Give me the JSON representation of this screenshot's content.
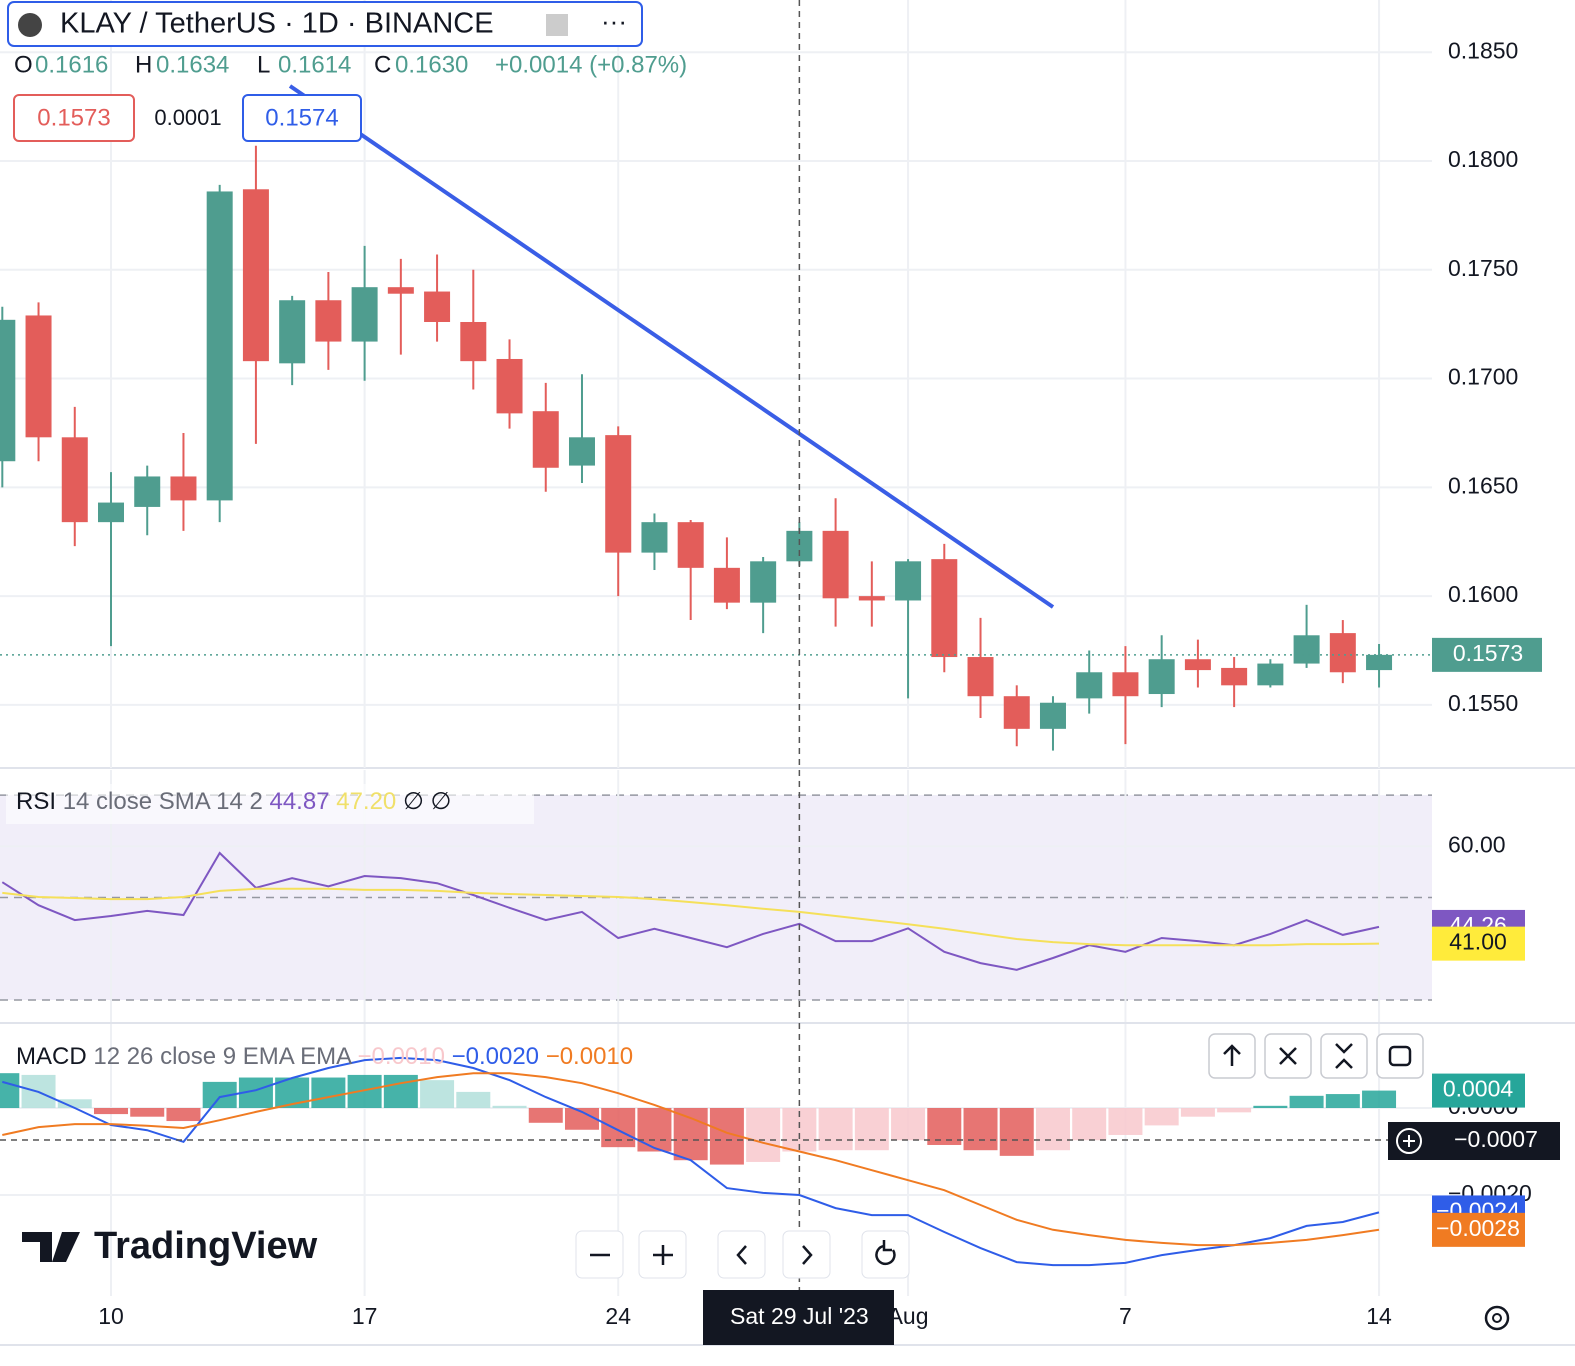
{
  "header": {
    "symbol": "KLAY / TetherUS · 1D · BINANCE",
    "ohlc": [
      {
        "key": "O",
        "value": "0.1616"
      },
      {
        "key": "H",
        "value": "0.1634"
      },
      {
        "key": "L",
        "value": "0.1614"
      },
      {
        "key": "C",
        "value": "0.1630"
      }
    ],
    "change": "+0.0014 (+0.87%)",
    "sell": 0.1573,
    "spread": 0.0001,
    "buy": 0.1574
  },
  "logo": "TradingView",
  "crosshair": {
    "date_label": "Sat 29 Jul '23",
    "value_label": "−0.0007"
  },
  "chart_data": [
    {
      "type": "candlestick",
      "categories": [
        null,
        null,
        null,
        "10",
        null,
        null,
        null,
        null,
        null,
        null,
        "17",
        null,
        null,
        null,
        null,
        null,
        null,
        "24",
        null,
        null,
        null,
        null,
        null,
        null,
        null,
        "Aug",
        null,
        null,
        null,
        null,
        null,
        "7",
        null,
        null,
        null,
        null,
        null,
        null,
        "14"
      ],
      "open": [
        0.1662,
        0.1729,
        0.1673,
        0.1634,
        0.1641,
        0.1655,
        0.1644,
        0.1787,
        0.1707,
        0.1736,
        0.1717,
        0.1742,
        0.174,
        0.1726,
        0.1709,
        0.1685,
        0.166,
        0.1674,
        0.162,
        0.1634,
        0.1613,
        0.1597,
        0.1616,
        0.163,
        0.16,
        0.1598,
        0.1617,
        0.1572,
        0.1554,
        0.1539,
        0.1553,
        0.1565,
        0.1555,
        0.1571,
        0.1567,
        0.1559,
        0.1569,
        0.1583,
        0.1566
      ],
      "high": [
        0.1733,
        0.1735,
        0.1687,
        0.1657,
        0.166,
        0.1675,
        0.1789,
        0.1807,
        0.1738,
        0.1749,
        0.1761,
        0.1755,
        0.1757,
        0.175,
        0.1718,
        0.1698,
        0.1702,
        0.1678,
        0.1638,
        0.1635,
        0.1627,
        0.1618,
        0.1634,
        0.1645,
        0.1616,
        0.1617,
        0.1624,
        0.159,
        0.1559,
        0.1554,
        0.1575,
        0.1577,
        0.1582,
        0.158,
        0.1572,
        0.1571,
        0.1596,
        0.1589,
        0.1578
      ],
      "low": [
        0.165,
        0.1662,
        0.1623,
        0.1577,
        0.1628,
        0.163,
        0.1634,
        0.167,
        0.1697,
        0.1704,
        0.1699,
        0.1711,
        0.1717,
        0.1695,
        0.1677,
        0.1648,
        0.1652,
        0.16,
        0.1612,
        0.1589,
        0.1594,
        0.1583,
        0.1614,
        0.1586,
        0.1586,
        0.1553,
        0.1565,
        0.1544,
        0.1531,
        0.1529,
        0.1546,
        0.1532,
        0.1549,
        0.1558,
        0.1549,
        0.1558,
        0.1567,
        0.156,
        0.1558
      ],
      "close": [
        0.1727,
        0.1673,
        0.1634,
        0.1643,
        0.1655,
        0.1644,
        0.1786,
        0.1708,
        0.1736,
        0.1717,
        0.1742,
        0.1739,
        0.1726,
        0.1708,
        0.1684,
        0.1659,
        0.1673,
        0.162,
        0.1634,
        0.1613,
        0.1597,
        0.1616,
        0.163,
        0.1599,
        0.1598,
        0.1616,
        0.1572,
        0.1554,
        0.1539,
        0.1551,
        0.1565,
        0.1554,
        0.1571,
        0.1566,
        0.1559,
        0.1569,
        0.1582,
        0.1565,
        0.1573
      ],
      "up_color": "#4f9d8f",
      "down_color": "#e35d5a",
      "ylim": [
        0.1521,
        0.1874
      ],
      "yticks": [
        {
          "value": 0.185,
          "label": "0.1850"
        },
        {
          "value": 0.18,
          "label": "0.1800"
        },
        {
          "value": 0.175,
          "label": "0.1750"
        },
        {
          "value": 0.17,
          "label": "0.1700"
        },
        {
          "value": 0.165,
          "label": "0.1650"
        },
        {
          "value": 0.16,
          "label": "0.1600"
        },
        {
          "value": 0.155,
          "label": "0.1550"
        }
      ],
      "last_price": 0.1573,
      "grid": true
    },
    {
      "type": "line",
      "title": "RSI",
      "params": "14 close SMA 14 2",
      "flags": "∅ ∅",
      "series": [
        {
          "name": "RSI",
          "color": "#7e57c2",
          "legend_value": "44.87",
          "last_label": "44.26",
          "values": [
            53.0,
            48.5,
            45.6,
            46.4,
            47.4,
            46.6,
            58.7,
            51.9,
            53.8,
            52.2,
            54.2,
            53.8,
            52.8,
            50.5,
            48.0,
            45.6,
            47.2,
            42.1,
            43.9,
            42.1,
            40.3,
            42.9,
            44.87,
            41.5,
            41.5,
            44.0,
            39.4,
            37.2,
            35.9,
            38.2,
            40.7,
            39.4,
            42.1,
            41.5,
            40.7,
            42.9,
            45.6,
            42.7,
            44.26
          ]
        },
        {
          "name": "SMA",
          "color": "#f5e05a",
          "legend_value": "47.20",
          "last_label": "41.00",
          "values": [
            50.9,
            50.1,
            49.9,
            49.7,
            49.7,
            50.1,
            51.3,
            51.7,
            51.7,
            51.7,
            51.5,
            51.5,
            51.3,
            50.9,
            50.7,
            50.5,
            50.3,
            50.1,
            49.7,
            49.1,
            48.5,
            47.8,
            47.2,
            46.4,
            45.6,
            44.8,
            43.9,
            42.9,
            41.9,
            41.3,
            40.9,
            40.7,
            40.7,
            40.7,
            40.7,
            40.7,
            40.9,
            40.9,
            41.0
          ]
        }
      ],
      "bands": [
        70,
        50,
        30
      ],
      "band_color": "#f1eef9",
      "ylim": [
        25.7,
        74.9
      ],
      "yticks": [
        {
          "value": 60,
          "label": "60.00"
        }
      ],
      "grid": true
    },
    {
      "type": "macd",
      "title": "MACD",
      "params": "12 26 close 9 EMA EMA",
      "histogram": {
        "name": "Histogram",
        "legend_value": "−0.0010",
        "last_label": "0.0004",
        "colors": [
          "#26a69a",
          "#b2dfdb",
          "#e35d5a",
          "#f8c8cc"
        ],
        "values": [
          0.0008,
          0.00076,
          0.0002,
          -0.00014,
          -0.0002,
          -0.0003,
          0.0006,
          0.0007,
          0.0007,
          0.0007,
          0.00076,
          0.00076,
          0.00064,
          0.00037,
          5e-05,
          -0.00034,
          -0.0005,
          -0.0009,
          -0.001,
          -0.0012,
          -0.0013,
          -0.00124,
          -0.001,
          -0.00097,
          -0.00097,
          -0.00074,
          -0.00085,
          -0.00097,
          -0.0011,
          -0.00097,
          -0.00074,
          -0.00062,
          -0.0004,
          -0.0002,
          -0.0001,
          5e-05,
          0.00028,
          0.00032,
          0.0004
        ]
      },
      "series": [
        {
          "name": "MACD",
          "color": "#2f5de8",
          "legend_value": "−0.0020",
          "last_label": "−0.0024",
          "values": [
            0.0006,
            0.00037,
            0,
            -0.00039,
            -0.00051,
            -0.00078,
            0.00025,
            0.00041,
            0.00069,
            0.00092,
            0.0011,
            0.00115,
            0.0011,
            0.00092,
            0.00064,
            0.00025,
            -9e-05,
            -0.00051,
            -0.00092,
            -0.0012,
            -0.00184,
            -0.00195,
            -0.002,
            -0.0023,
            -0.00246,
            -0.00246,
            -0.00285,
            -0.00322,
            -0.00354,
            -0.00361,
            -0.00361,
            -0.00356,
            -0.00338,
            -0.00326,
            -0.00315,
            -0.00299,
            -0.00271,
            -0.00262,
            -0.0024
          ]
        },
        {
          "name": "Signal",
          "color": "#f07b22",
          "legend_value": "−0.0010",
          "last_label": "−0.0028",
          "values": [
            -0.00062,
            -0.00044,
            -0.00037,
            -0.00037,
            -0.00041,
            -0.00046,
            -0.00028,
            -9e-05,
            9e-05,
            0.00025,
            0.00041,
            0.00057,
            0.00071,
            0.0008,
            0.0008,
            0.00071,
            0.00057,
            0.00034,
            7e-05,
            -0.00023,
            -0.00057,
            -0.0008,
            -0.001,
            -0.0012,
            -0.00143,
            -0.00166,
            -0.00189,
            -0.00223,
            -0.00257,
            -0.0028,
            -0.00292,
            -0.00303,
            -0.0031,
            -0.00315,
            -0.00315,
            -0.0031,
            -0.00303,
            -0.00292,
            -0.0028
          ]
        }
      ],
      "ylim": [
        -0.00432,
        0.00193
      ],
      "yticks": [
        {
          "value": 0,
          "label": "0.0000"
        },
        {
          "value": -0.002,
          "label": "−0.0020"
        }
      ],
      "grid": true
    }
  ]
}
